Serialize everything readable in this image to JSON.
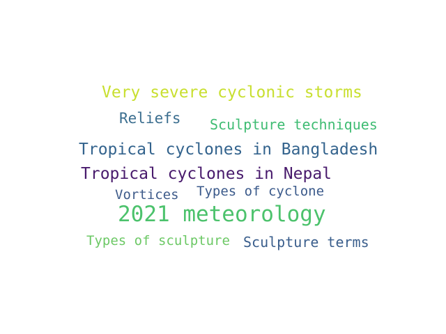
{
  "words": [
    {
      "id": "w-very-severe",
      "text": "Very severe cyclonic storms",
      "color": "#c8df2f"
    },
    {
      "id": "w-reliefs",
      "text": "Reliefs",
      "color": "#3b6e8f"
    },
    {
      "id": "w-sculpt-tech",
      "text": "Sculpture techniques",
      "color": "#3fbc73"
    },
    {
      "id": "w-bangladesh",
      "text": "Tropical cyclones in Bangladesh",
      "color": "#33638d"
    },
    {
      "id": "w-nepal",
      "text": "Tropical cyclones in Nepal",
      "color": "#481a6c"
    },
    {
      "id": "w-vortices",
      "text": "Vortices",
      "color": "#3e5b8a"
    },
    {
      "id": "w-types-cyclone",
      "text": "Types of cyclone",
      "color": "#3b5a8b"
    },
    {
      "id": "w-meteorology",
      "text": "2021 meteorology",
      "color": "#4cc26c"
    },
    {
      "id": "w-types-sculpt",
      "text": "Types of sculpture",
      "color": "#6cc865"
    },
    {
      "id": "w-sculpt-terms",
      "text": "Sculpture terms",
      "color": "#3a5e8c"
    }
  ]
}
